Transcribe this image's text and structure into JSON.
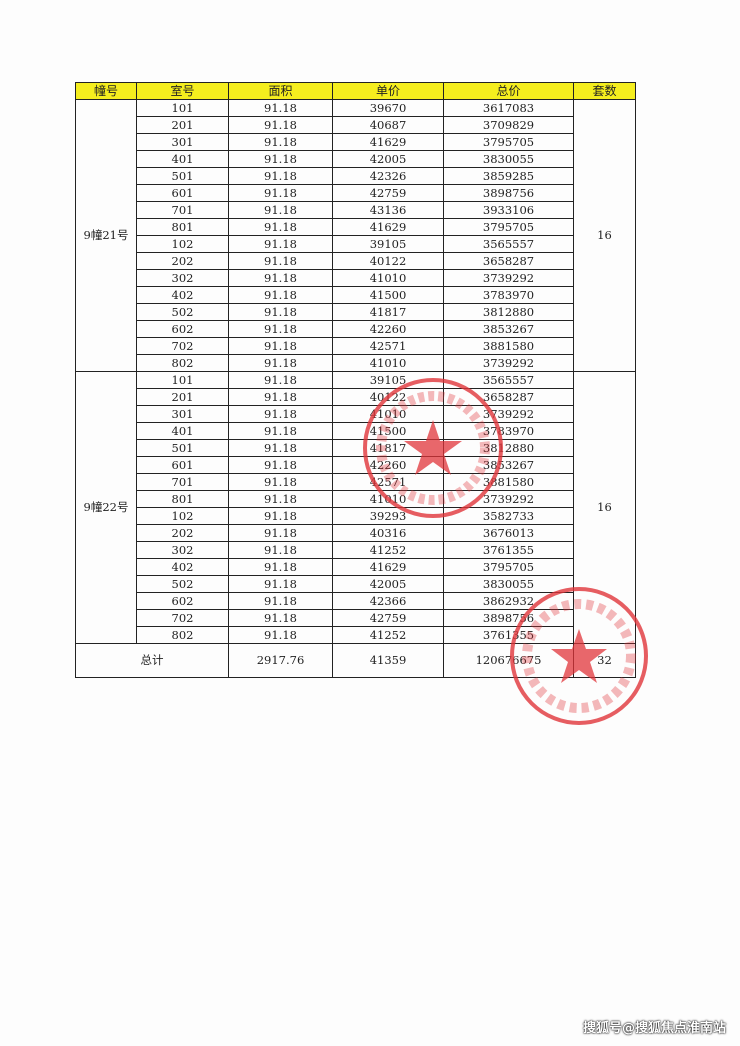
{
  "headers": [
    "幢号",
    "室号",
    "面积",
    "单价",
    "总价",
    "套数"
  ],
  "groups": [
    {
      "building": "9幢21号",
      "count": "16",
      "rows": [
        [
          "101",
          "91.18",
          "39670",
          "3617083"
        ],
        [
          "201",
          "91.18",
          "40687",
          "3709829"
        ],
        [
          "301",
          "91.18",
          "41629",
          "3795705"
        ],
        [
          "401",
          "91.18",
          "42005",
          "3830055"
        ],
        [
          "501",
          "91.18",
          "42326",
          "3859285"
        ],
        [
          "601",
          "91.18",
          "42759",
          "3898756"
        ],
        [
          "701",
          "91.18",
          "43136",
          "3933106"
        ],
        [
          "801",
          "91.18",
          "41629",
          "3795705"
        ],
        [
          "102",
          "91.18",
          "39105",
          "3565557"
        ],
        [
          "202",
          "91.18",
          "40122",
          "3658287"
        ],
        [
          "302",
          "91.18",
          "41010",
          "3739292"
        ],
        [
          "402",
          "91.18",
          "41500",
          "3783970"
        ],
        [
          "502",
          "91.18",
          "41817",
          "3812880"
        ],
        [
          "602",
          "91.18",
          "42260",
          "3853267"
        ],
        [
          "702",
          "91.18",
          "42571",
          "3881580"
        ],
        [
          "802",
          "91.18",
          "41010",
          "3739292"
        ]
      ]
    },
    {
      "building": "9幢22号",
      "count": "16",
      "rows": [
        [
          "101",
          "91.18",
          "39105",
          "3565557"
        ],
        [
          "201",
          "91.18",
          "40122",
          "3658287"
        ],
        [
          "301",
          "91.18",
          "41010",
          "3739292"
        ],
        [
          "401",
          "91.18",
          "41500",
          "3783970"
        ],
        [
          "501",
          "91.18",
          "41817",
          "3812880"
        ],
        [
          "601",
          "91.18",
          "42260",
          "3853267"
        ],
        [
          "701",
          "91.18",
          "42571",
          "3881580"
        ],
        [
          "801",
          "91.18",
          "41010",
          "3739292"
        ],
        [
          "102",
          "91.18",
          "39293",
          "3582733"
        ],
        [
          "202",
          "91.18",
          "40316",
          "3676013"
        ],
        [
          "302",
          "91.18",
          "41252",
          "3761355"
        ],
        [
          "402",
          "91.18",
          "41629",
          "3795705"
        ],
        [
          "502",
          "91.18",
          "42005",
          "3830055"
        ],
        [
          "602",
          "91.18",
          "42366",
          "3862932"
        ],
        [
          "702",
          "91.18",
          "42759",
          "3898756"
        ],
        [
          "802",
          "91.18",
          "41252",
          "3761355"
        ]
      ]
    }
  ],
  "total": {
    "label": "总计",
    "area": "2917.76",
    "unit_price": "41359",
    "total_price": "120676675",
    "count": "32"
  },
  "colors": {
    "header_bg": "#f5ee1e",
    "stamp": "#e0343a"
  },
  "watermark": "搜狐号@搜狐焦点淮南站"
}
